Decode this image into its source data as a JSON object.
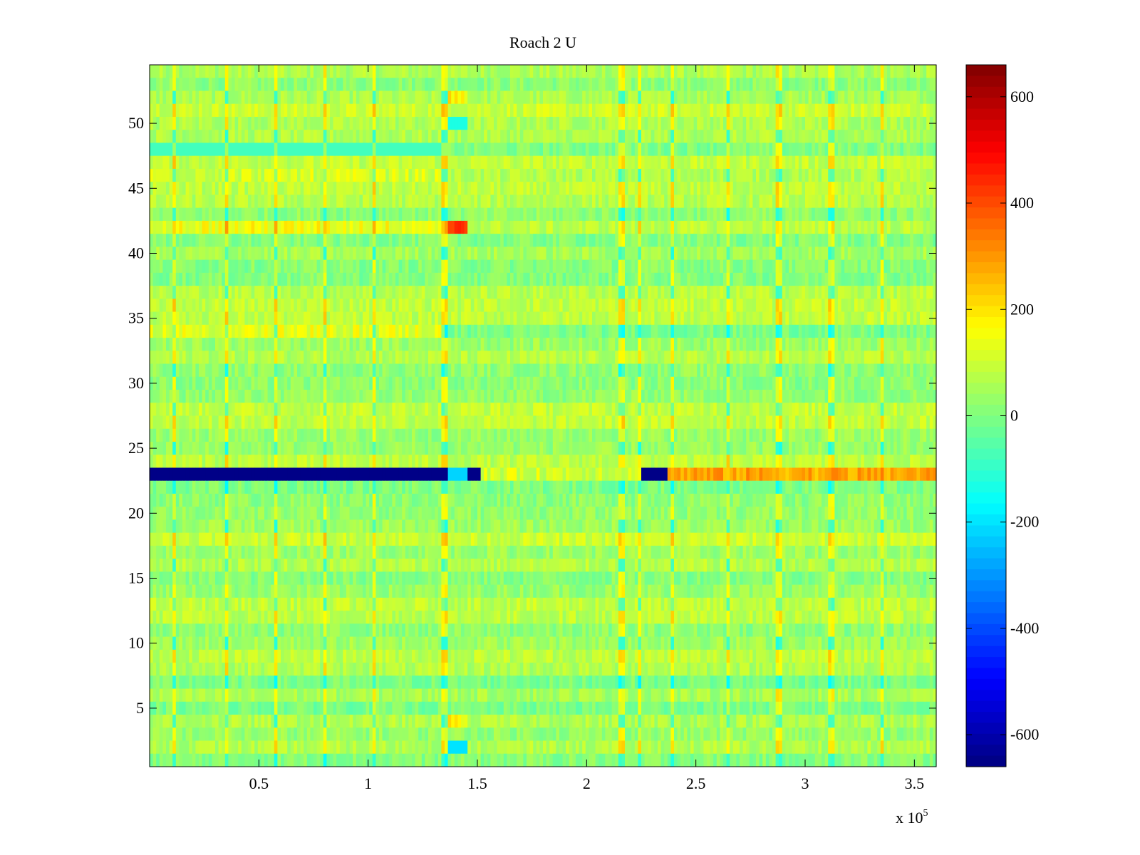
{
  "chart_data": {
    "type": "heatmap",
    "title": "Roach 2 U",
    "xlabel": "",
    "ylabel": "",
    "x_multiplier_label": "x 10",
    "x_multiplier_exponent": "5",
    "xlim": [
      0,
      360000
    ],
    "ylim": [
      0.5,
      54.5
    ],
    "x_ticks": [
      50000,
      100000,
      150000,
      200000,
      250000,
      300000,
      350000
    ],
    "x_tick_labels": [
      "0.5",
      "1",
      "1.5",
      "2",
      "2.5",
      "3",
      "3.5"
    ],
    "y_ticks": [
      5,
      10,
      15,
      20,
      25,
      30,
      35,
      40,
      45,
      50
    ],
    "y_tick_labels": [
      "5",
      "10",
      "15",
      "20",
      "25",
      "30",
      "35",
      "40",
      "45",
      "50"
    ],
    "rows": 54,
    "colormap": "jet",
    "clim": [
      -660,
      660
    ],
    "colorbar": {
      "ticks": [
        600,
        400,
        200,
        0,
        -200,
        -400,
        -600
      ],
      "tick_labels": [
        "600",
        "400",
        "200",
        "0",
        "-200",
        "-400",
        "-600"
      ]
    },
    "background_level": 40,
    "features": [
      {
        "row": 32,
        "x": [
          0,
          152000
        ],
        "value": -650
      },
      {
        "row": 32,
        "x": [
          152000,
          225000
        ],
        "value": 110
      },
      {
        "row": 32,
        "x": [
          225000,
          237000
        ],
        "value": -650
      },
      {
        "row": 32,
        "x": [
          237000,
          360000
        ],
        "value": 280
      },
      {
        "row": 13,
        "x": [
          0,
          137000
        ],
        "value": 150
      },
      {
        "row": 13,
        "x": [
          137000,
          145000
        ],
        "value": 420
      },
      {
        "row": 21,
        "x": [
          0,
          135000
        ],
        "value": 130
      },
      {
        "row": 7,
        "x": [
          0,
          137000
        ],
        "value": -80
      },
      {
        "row": 9,
        "x": [
          0,
          137000
        ],
        "value": 110
      },
      {
        "row": 53,
        "x": [
          137000,
          146000
        ],
        "value": -200
      },
      {
        "row": 51,
        "x": [
          137000,
          146000
        ],
        "value": 180
      },
      {
        "row": 32,
        "x": [
          137000,
          146000
        ],
        "value": -220
      },
      {
        "row": 3,
        "x": [
          137000,
          146000
        ],
        "value": 180
      },
      {
        "row": 5,
        "x": [
          137000,
          146000
        ],
        "value": -130
      }
    ],
    "vertical_streaks": [
      11000,
      35000,
      58000,
      80000,
      103000,
      135000,
      216000,
      224000,
      239000,
      265000,
      288000,
      312000,
      335000
    ]
  }
}
